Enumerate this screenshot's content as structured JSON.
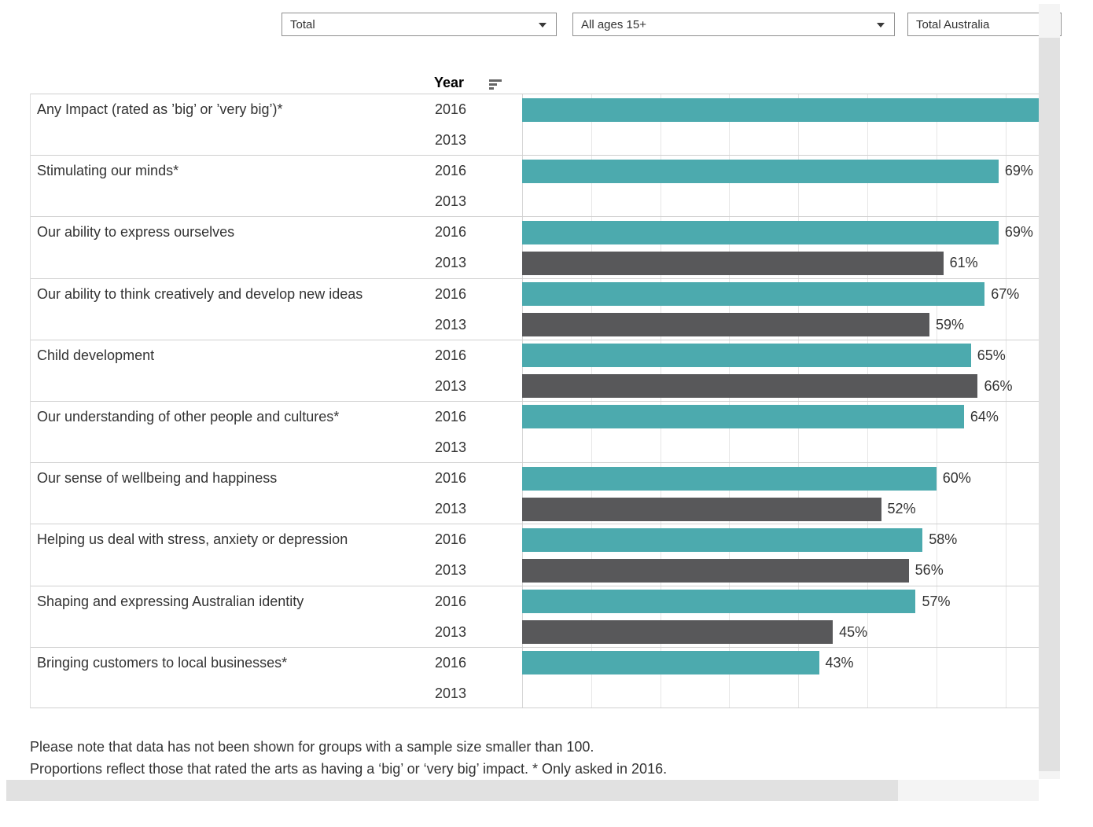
{
  "filters": [
    {
      "name": "demographic-filter",
      "value": "Total"
    },
    {
      "name": "age-filter",
      "value": "All ages 15+"
    },
    {
      "name": "region-filter",
      "value": "Total Australia"
    }
  ],
  "table_header": {
    "year_label": "Year",
    "sort_icon": "sort-descending-icon"
  },
  "footnotes": [
    "Please note that data has not been shown for groups with a sample size smaller than 100.",
    "Proportions reflect those that rated the arts as having a ‘big’ or ‘very big’ impact. * Only asked in 2016."
  ],
  "colors": {
    "bar_2016": "#4caaae",
    "bar_2013": "#58585a",
    "row_separator": "#d0d0d0",
    "gridline": "#e6e6e6",
    "text": "#333333",
    "scrollbar_track": "#f4f4f4",
    "scrollbar_thumb": "#e1e1e1"
  },
  "chart_data": {
    "type": "bar",
    "orientation": "horizontal",
    "value_unit": "%",
    "x_axis": {
      "visible_range": [
        0,
        75
      ],
      "gridline_interval": 10,
      "gridlines_shown": [
        10,
        20,
        30,
        40,
        50,
        60,
        70
      ],
      "tick_labels_visible": false
    },
    "legend_visible": false,
    "series": [
      {
        "name": "2016",
        "color": "#4caaae"
      },
      {
        "name": "2013",
        "color": "#58585a"
      }
    ],
    "categories": [
      "Any Impact (rated as ’big’ or ’very big’)*",
      "Stimulating our minds*",
      "Our ability to express ourselves",
      "Our ability to think creatively and develop new ideas",
      "Child development",
      "Our understanding of other people and cultures*",
      "Our sense of wellbeing and happiness",
      "Helping us deal with stress, anxiety or depression",
      "Shaping and expressing Australian identity",
      "Bringing customers to local businesses*"
    ],
    "rows": [
      {
        "category": "Any Impact (rated as ’big’ or ’very big’)*",
        "bars": [
          {
            "year": "2016",
            "value": null,
            "label": "",
            "clipped_at_right_edge": true
          },
          {
            "year": "2013",
            "value": null,
            "label": ""
          }
        ]
      },
      {
        "category": "Stimulating our minds*",
        "bars": [
          {
            "year": "2016",
            "value": 69,
            "label": "69%"
          },
          {
            "year": "2013",
            "value": null,
            "label": ""
          }
        ]
      },
      {
        "category": "Our ability to express ourselves",
        "bars": [
          {
            "year": "2016",
            "value": 69,
            "label": "69%"
          },
          {
            "year": "2013",
            "value": 61,
            "label": "61%"
          }
        ]
      },
      {
        "category": "Our ability to think creatively and develop new ideas",
        "bars": [
          {
            "year": "2016",
            "value": 67,
            "label": "67%"
          },
          {
            "year": "2013",
            "value": 59,
            "label": "59%"
          }
        ]
      },
      {
        "category": "Child development",
        "bars": [
          {
            "year": "2016",
            "value": 65,
            "label": "65%"
          },
          {
            "year": "2013",
            "value": 66,
            "label": "66%"
          }
        ]
      },
      {
        "category": "Our understanding of other people and cultures*",
        "bars": [
          {
            "year": "2016",
            "value": 64,
            "label": "64%"
          },
          {
            "year": "2013",
            "value": null,
            "label": ""
          }
        ]
      },
      {
        "category": "Our sense of wellbeing and happiness",
        "bars": [
          {
            "year": "2016",
            "value": 60,
            "label": "60%"
          },
          {
            "year": "2013",
            "value": 52,
            "label": "52%"
          }
        ]
      },
      {
        "category": "Helping us deal with stress, anxiety or depression",
        "bars": [
          {
            "year": "2016",
            "value": 58,
            "label": "58%"
          },
          {
            "year": "2013",
            "value": 56,
            "label": "56%"
          }
        ]
      },
      {
        "category": "Shaping and expressing Australian identity",
        "bars": [
          {
            "year": "2016",
            "value": 57,
            "label": "57%"
          },
          {
            "year": "2013",
            "value": 45,
            "label": "45%"
          }
        ]
      },
      {
        "category": "Bringing customers to local businesses*",
        "bars": [
          {
            "year": "2016",
            "value": 43,
            "label": "43%"
          },
          {
            "year": "2013",
            "value": null,
            "label": ""
          }
        ]
      }
    ]
  }
}
